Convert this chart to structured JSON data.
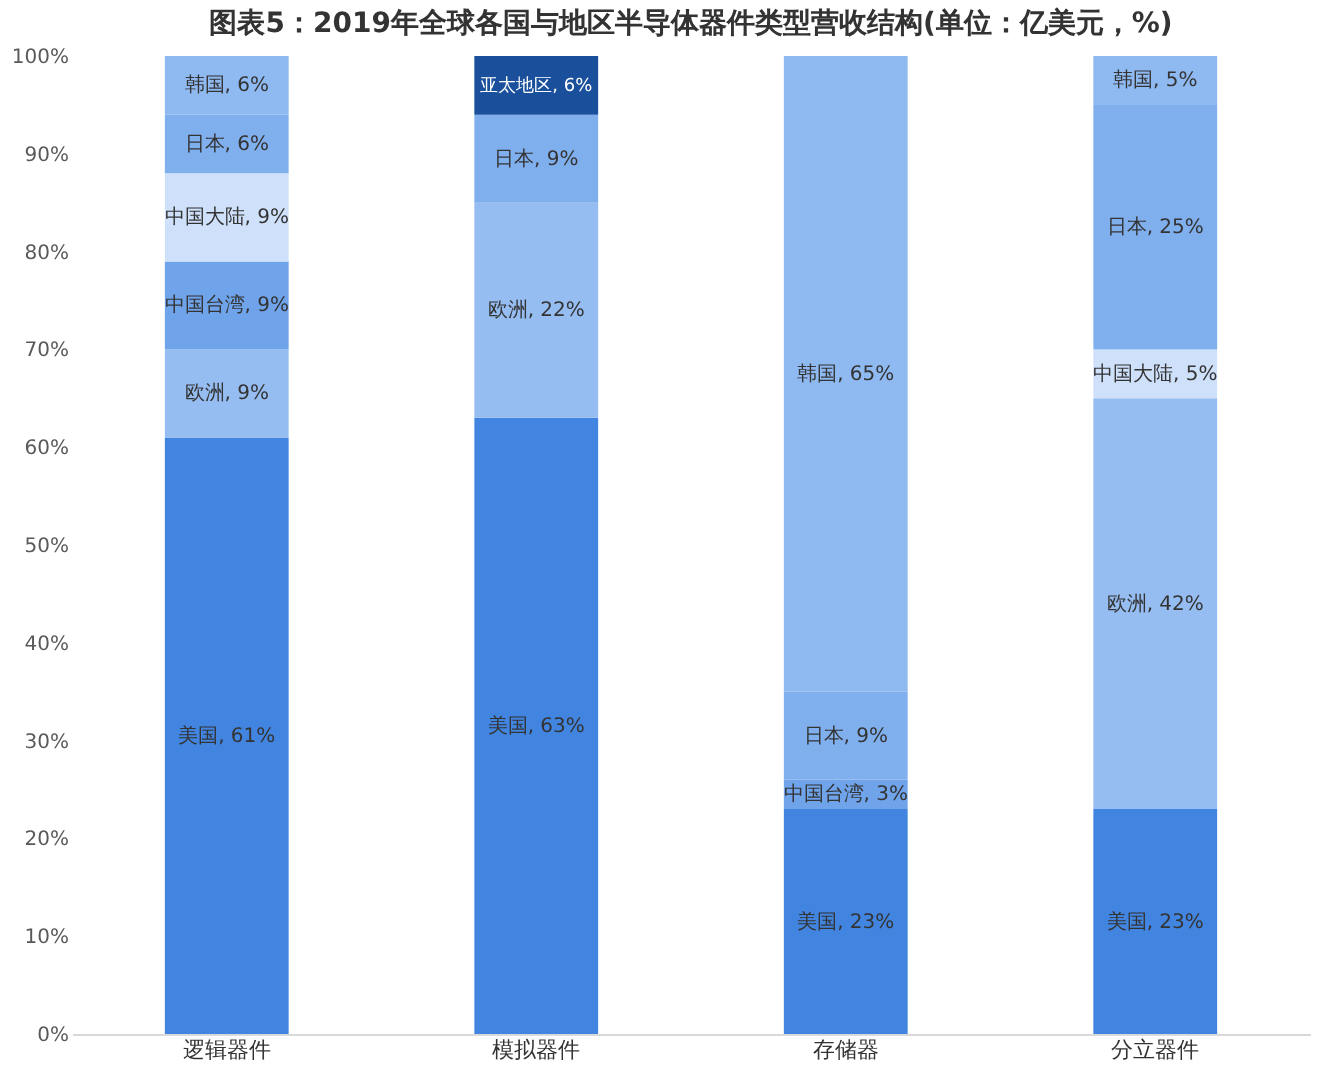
{
  "chart_data": {
    "type": "bar",
    "title": "图表5：2019年全球各国与地区半导体器件类型营收结构(单位：亿美元，%)",
    "categories": [
      "逻辑器件",
      "模拟器件",
      "存储器",
      "分立器件"
    ],
    "stacked": true,
    "legend": false,
    "grid": false,
    "ylim": [
      0,
      100
    ],
    "yticks": [
      {
        "value": 0,
        "label": "0%"
      },
      {
        "value": 10,
        "label": "10%"
      },
      {
        "value": 20,
        "label": "20%"
      },
      {
        "value": 30,
        "label": "30%"
      },
      {
        "value": 40,
        "label": "40%"
      },
      {
        "value": 50,
        "label": "50%"
      },
      {
        "value": 60,
        "label": "60%"
      },
      {
        "value": 70,
        "label": "70%"
      },
      {
        "value": 80,
        "label": "80%"
      },
      {
        "value": 90,
        "label": "90%"
      },
      {
        "value": 100,
        "label": "100%"
      }
    ],
    "series": [
      {
        "color": "#4285e0",
        "values": [
          61,
          63,
          23,
          23
        ],
        "value_labels": [
          "美国, 61%",
          "美国, 63%",
          "美国, 23%",
          "美国, 23%"
        ]
      },
      {
        "color": "#95bdf2",
        "values": [
          9,
          22,
          null,
          42
        ],
        "value_labels": [
          "欧洲, 9%",
          "欧洲, 22%",
          null,
          "欧洲, 42%"
        ]
      },
      {
        "color": "#6fa3ea",
        "values": [
          9,
          null,
          3,
          null
        ],
        "value_labels": [
          "中国台湾, 9%",
          null,
          "中国台湾, 3%",
          null
        ]
      },
      {
        "color": "#cfe1fa",
        "values": [
          9,
          null,
          null,
          5
        ],
        "value_labels": [
          "中国大陆, 9%",
          null,
          null,
          "中国大陆, 5%"
        ]
      },
      {
        "color": "#80afee",
        "values": [
          6,
          9,
          9,
          25
        ],
        "value_labels": [
          "日本, 6%",
          "日本, 9%",
          "日本, 9%",
          "日本, 25%"
        ]
      },
      {
        "color": "#8fb9f1",
        "values": [
          6,
          null,
          65,
          5
        ],
        "value_labels": [
          "韩国, 6%",
          null,
          "韩国, 65%",
          "韩国, 5%"
        ]
      },
      {
        "color": "#1a4f9c",
        "values": [
          null,
          6,
          null,
          null
        ],
        "value_labels": [
          null,
          "亚太地区, 6%",
          null,
          null
        ]
      }
    ]
  }
}
